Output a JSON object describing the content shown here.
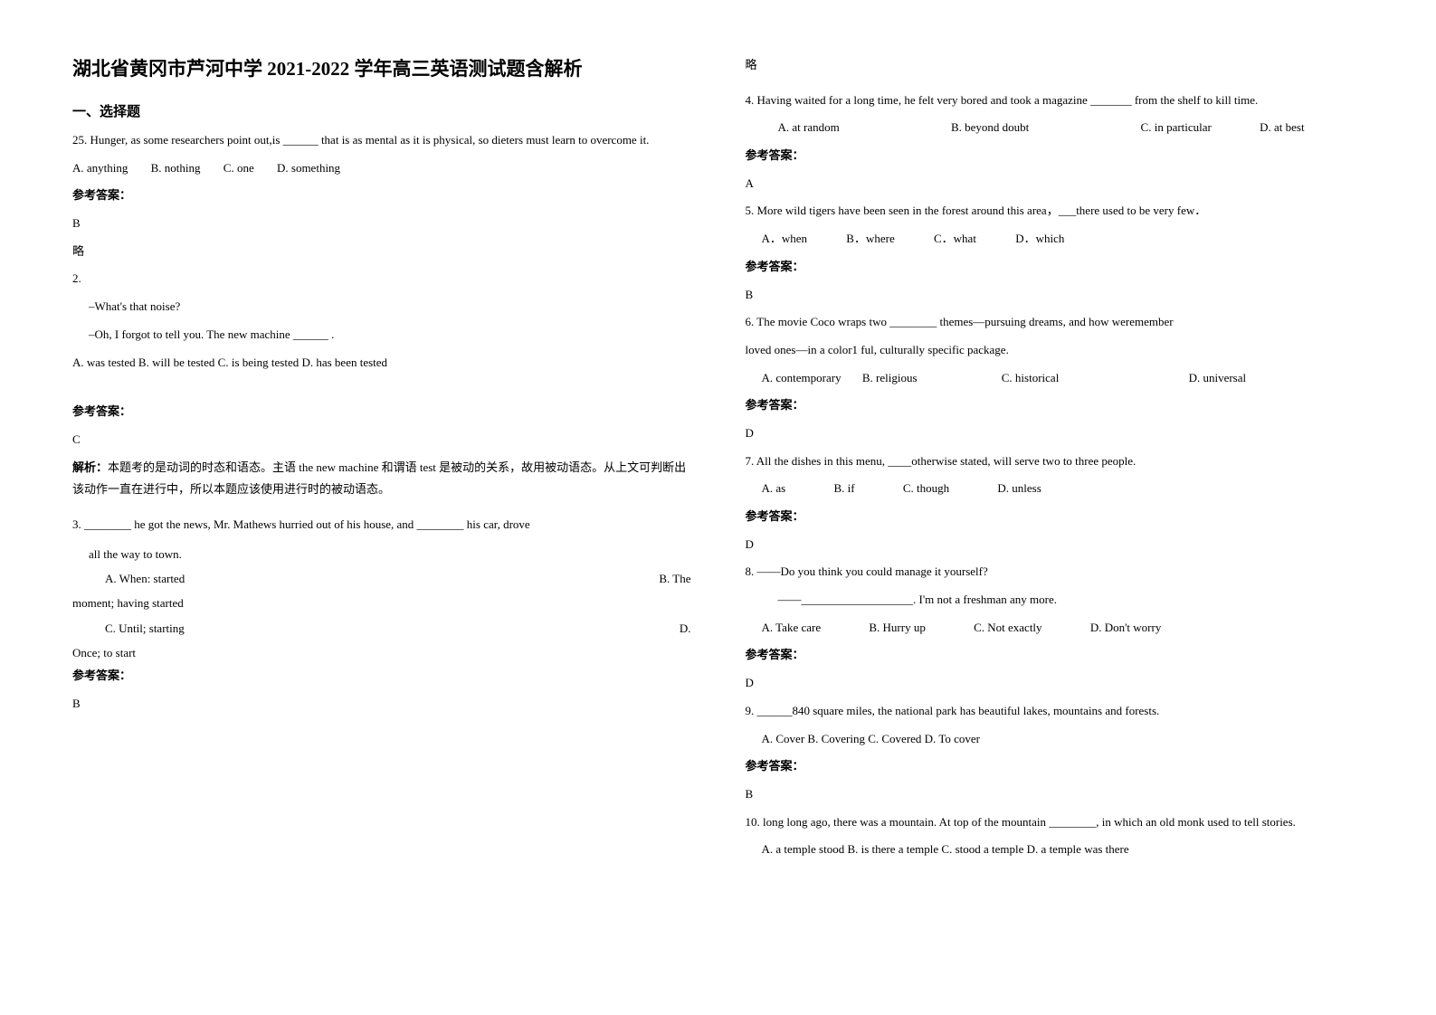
{
  "title": "湖北省黄冈市芦河中学 2021-2022 学年高三英语测试题含解析",
  "section1": "一、选择题",
  "q25": {
    "text": "25. Hunger, as some researchers point out,is ______ that is as mental as it is physical, so dieters must learn to overcome it.",
    "opts": [
      "A. anything",
      "B. nothing",
      "C. one",
      "D. something"
    ]
  },
  "ansLabel": "参考答案：",
  "a25": "B",
  "a25note": "略",
  "q2": {
    "num": "2.",
    "l1": "–What's that noise?",
    "l2": "–Oh, I forgot to tell you. The new machine ______ .",
    "opts": "A. was tested   B. will be tested   C. is being tested   D. has been tested"
  },
  "a2": "C",
  "a2expl": "解析：本题考的是动词的时态和语态。主语 the new machine 和谓语 test 是被动的关系，故用被动语态。从上文可判断出该动作一直在进行中，所以本题应该使用进行时的被动语态。",
  "q3": {
    "text": "3. ________ he got the news, Mr. Mathews hurried out of his house, and ________ his car, drove",
    "text2": "all the way to town.",
    "optA": "A. When: started",
    "optB": "B. The",
    "optB2": "moment; having started",
    "optC": "C. Until; starting",
    "optD": "D.",
    "optD2": "Once; to start"
  },
  "a3": "B",
  "略": "略",
  "q4": {
    "text": "4. Having waited for a long time, he felt very bored and took a magazine _______ from the shelf to kill time.",
    "opts": [
      "A. at random",
      "B. beyond doubt",
      "C. in particular",
      "D. at best"
    ]
  },
  "a4": "A",
  "q5": {
    "text": "5. More wild tigers have been seen in the forest around this area，___there used to be very few．",
    "opts": [
      "A．when",
      "B．where",
      "C．what",
      "D．which"
    ]
  },
  "a5": "B",
  "q6": {
    "text": "6. The movie Coco wraps two ________ themes—pursuing dreams, and how weremember",
    "text2": "loved ones—in a color1 ful, culturally specific package.",
    "opts": [
      "A. contemporary",
      "B. religious",
      "C. historical",
      "D. universal"
    ]
  },
  "a6": "D",
  "q7": {
    "text": "7. All the dishes in this menu, ____otherwise stated, will serve two to three people.",
    "opts": [
      "A. as",
      "B. if",
      "C. though",
      "D. unless"
    ]
  },
  "a7": "D",
  "q8": {
    "l1": "8.  ——Do  you think you could manage it yourself?",
    "l2": "——___________________. I'm not a freshman any more.",
    "opts": [
      "A.  Take care",
      "B. Hurry up",
      "C. Not exactly",
      "D. Don't worry"
    ]
  },
  "a8": "D",
  "q9": {
    "text": "9. ______840 square miles, the national park has beautiful lakes, mountains and forests.",
    "opts": "A. Cover   B. Covering   C. Covered   D. To cover"
  },
  "a9": "B",
  "q10": {
    "text": "10. long long ago, there was a mountain. At top of the mountain ________, in which an old monk used to tell stories.",
    "opts": "A. a temple stood    B. is there a temple     C. stood a temple    D. a temple was there"
  }
}
